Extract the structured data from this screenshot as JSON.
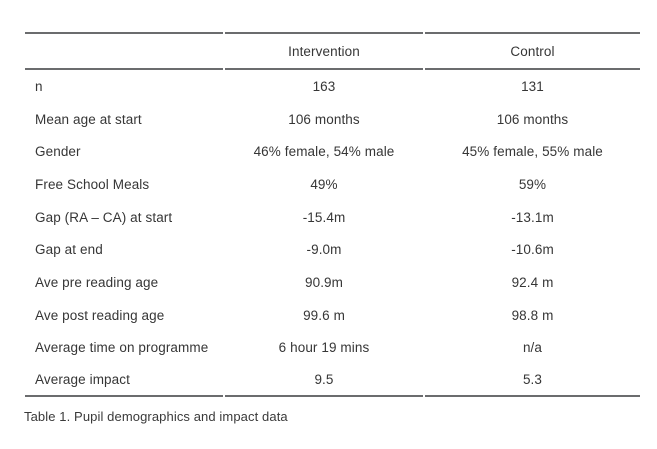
{
  "page": {
    "background_color": "#ffffff",
    "rule_color": "#6b6c6e",
    "text_color": "#363636"
  },
  "table": {
    "headers": {
      "label": "",
      "intervention": "Intervention",
      "control": "Control"
    },
    "rows": [
      {
        "label": "n",
        "intervention": "163",
        "control": "131"
      },
      {
        "label": "Mean age at start",
        "intervention": "106 months",
        "control": "106 months"
      },
      {
        "label": "Gender",
        "intervention": "46% female, 54% male",
        "control": "45% female, 55% male"
      },
      {
        "label": "Free School Meals",
        "intervention": "49%",
        "control": "59%"
      },
      {
        "label": "Gap (RA – CA) at start",
        "intervention": "-15.4m",
        "control": "-13.1m"
      },
      {
        "label": "Gap at end",
        "intervention": "-9.0m",
        "control": "-10.6m"
      },
      {
        "label": "Ave pre reading age",
        "intervention": "90.9m",
        "control": "92.4 m"
      },
      {
        "label": "Ave post reading age",
        "intervention": "99.6 m",
        "control": "98.8 m"
      },
      {
        "label": "Average time on programme",
        "intervention": "6 hour 19 mins",
        "control": "n/a"
      },
      {
        "label": "Average impact",
        "intervention": "9.5",
        "control": "5.3"
      }
    ],
    "caption": "Table 1. Pupil demographics and impact data"
  }
}
